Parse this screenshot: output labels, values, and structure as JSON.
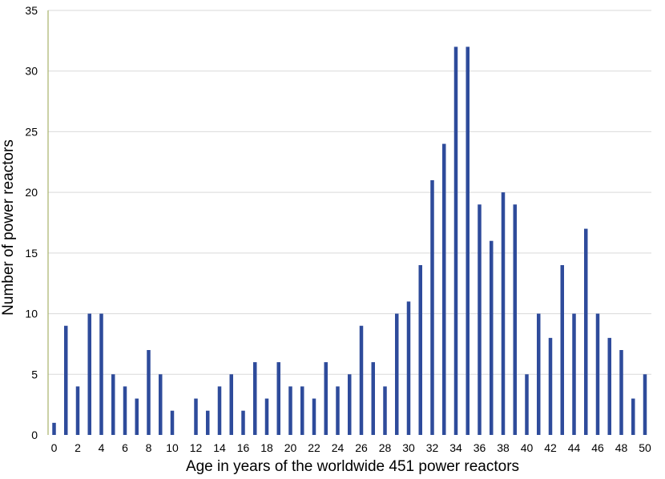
{
  "chart_data": {
    "type": "bar",
    "xlabel": "Age in years of the worldwide 451 power reactors",
    "ylabel": "Number of power reactors",
    "ylim": [
      0,
      35
    ],
    "y_ticks": [
      0,
      5,
      10,
      15,
      20,
      25,
      30,
      35
    ],
    "x_ticks": [
      0,
      2,
      4,
      6,
      8,
      10,
      12,
      14,
      16,
      18,
      20,
      22,
      24,
      26,
      28,
      30,
      32,
      34,
      36,
      38,
      40,
      42,
      44,
      46,
      48,
      50
    ],
    "categories": [
      0,
      1,
      2,
      3,
      4,
      5,
      6,
      7,
      8,
      9,
      10,
      11,
      12,
      13,
      14,
      15,
      16,
      17,
      18,
      19,
      20,
      21,
      22,
      23,
      24,
      25,
      26,
      27,
      28,
      29,
      30,
      31,
      32,
      33,
      34,
      35,
      36,
      37,
      38,
      39,
      40,
      41,
      42,
      43,
      44,
      45,
      46,
      47,
      48,
      49,
      50
    ],
    "values": [
      1,
      9,
      4,
      10,
      10,
      5,
      4,
      3,
      7,
      5,
      2,
      0,
      3,
      2,
      4,
      5,
      2,
      6,
      3,
      6,
      4,
      4,
      3,
      6,
      4,
      5,
      9,
      6,
      4,
      10,
      11,
      14,
      21,
      24,
      32,
      32,
      19,
      16,
      20,
      19,
      5,
      10,
      8,
      14,
      10,
      17,
      10,
      8,
      7,
      3,
      5
    ],
    "grid": "horizontal",
    "legend": "none",
    "colors": {
      "bar": "#2e4b9b",
      "grid": "#d9d9d9",
      "y_axis": "#a8b26a"
    }
  }
}
